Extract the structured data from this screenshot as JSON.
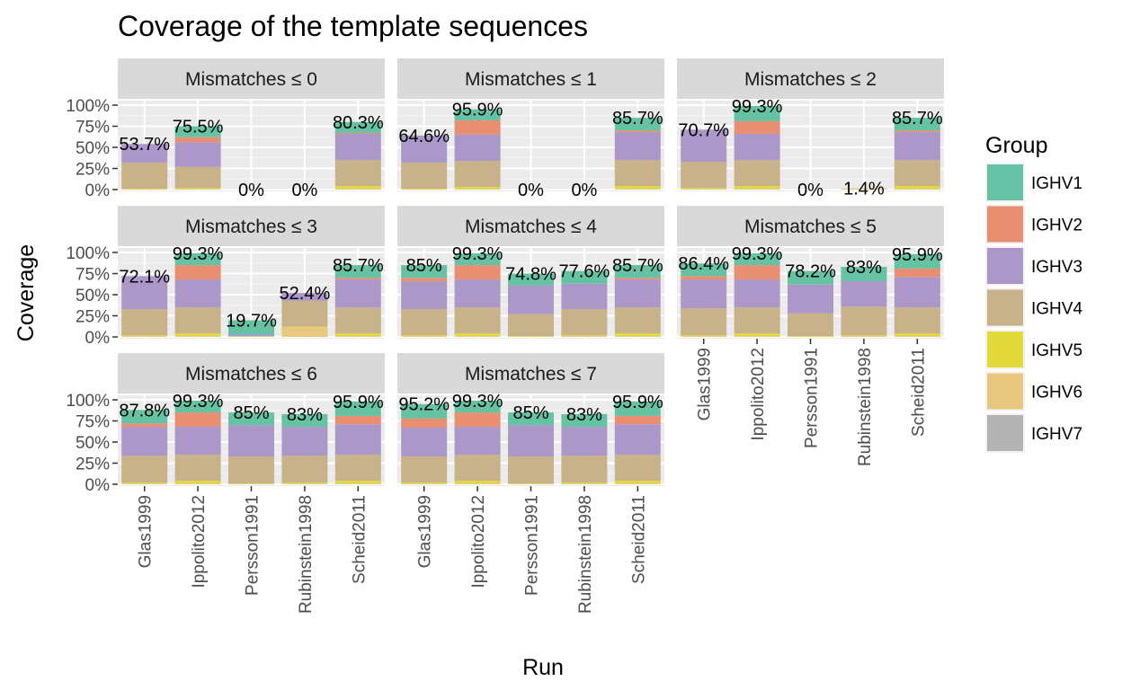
{
  "chart_data": {
    "type": "bar",
    "stacked": true,
    "title": "Coverage of the template sequences",
    "xlabel": "Run",
    "ylabel": "Coverage",
    "ylim": [
      0,
      1
    ],
    "y_ticks": [
      "0%",
      "25%",
      "50%",
      "75%",
      "100%"
    ],
    "grid": true,
    "categories": [
      "Glas1999",
      "Ippolito2012",
      "Persson1991",
      "Rubinstein1998",
      "Scheid2011"
    ],
    "legend": {
      "title": "Group",
      "position": "right",
      "items": [
        {
          "name": "IGHV1",
          "color": "#66c2a5"
        },
        {
          "name": "IGHV2",
          "color": "#e78f70"
        },
        {
          "name": "IGHV3",
          "color": "#ab98c9"
        },
        {
          "name": "IGHV4",
          "color": "#c7b28a"
        },
        {
          "name": "IGHV5",
          "color": "#e2d93b"
        },
        {
          "name": "IGHV6",
          "color": "#e8c77f"
        },
        {
          "name": "IGHV7",
          "color": "#b3b3b3"
        }
      ]
    },
    "facets": [
      {
        "label": "Mismatches ≤ 0",
        "totals": [
          "53.7%",
          "75.5%",
          "0%",
          "0%",
          "80.3%"
        ],
        "stacks": [
          [
            0,
            0,
            0.22,
            0.31,
            0.005,
            0.005,
            0
          ],
          [
            0.13,
            0.06,
            0.29,
            0.25,
            0.01,
            0.01,
            0
          ],
          [
            0,
            0,
            0,
            0,
            0,
            0,
            0
          ],
          [
            0,
            0,
            0,
            0,
            0,
            0,
            0
          ],
          [
            0.13,
            0.01,
            0.31,
            0.31,
            0.03,
            0.01,
            0
          ]
        ]
      },
      {
        "label": "Mismatches ≤ 1",
        "totals": [
          "64.6%",
          "95.9%",
          "0%",
          "0%",
          "85.7%"
        ],
        "stacks": [
          [
            0,
            0,
            0.32,
            0.31,
            0.005,
            0.005,
            0
          ],
          [
            0.13,
            0.17,
            0.31,
            0.31,
            0.02,
            0.01,
            0
          ],
          [
            0,
            0,
            0,
            0,
            0,
            0,
            0
          ],
          [
            0,
            0,
            0,
            0,
            0,
            0,
            0
          ],
          [
            0.15,
            0.02,
            0.33,
            0.31,
            0.03,
            0.01,
            0
          ]
        ]
      },
      {
        "label": "Mismatches ≤ 2",
        "totals": [
          "70.7%",
          "99.3%",
          "0%",
          "1.4%",
          "85.7%"
        ],
        "stacks": [
          [
            0,
            0,
            0.38,
            0.31,
            0.01,
            0.01,
            0
          ],
          [
            0.18,
            0.15,
            0.31,
            0.31,
            0.03,
            0.01,
            0
          ],
          [
            0,
            0,
            0,
            0,
            0,
            0,
            0
          ],
          [
            0,
            0,
            0,
            0,
            0,
            0.014,
            0
          ],
          [
            0.15,
            0.02,
            0.33,
            0.31,
            0.03,
            0.01,
            0
          ]
        ]
      },
      {
        "label": "Mismatches ≤ 3",
        "totals": [
          "72.1%",
          "99.3%",
          "19.7%",
          "52.4%",
          "85.7%"
        ],
        "stacks": [
          [
            0,
            0,
            0.39,
            0.31,
            0.01,
            0.01,
            0
          ],
          [
            0.14,
            0.17,
            0.33,
            0.31,
            0.03,
            0.01,
            0
          ],
          [
            0.17,
            0,
            0.02,
            0,
            0.005,
            0.002,
            0
          ],
          [
            0,
            0,
            0.09,
            0.31,
            0.01,
            0.11,
            0
          ],
          [
            0.15,
            0.02,
            0.33,
            0.31,
            0.03,
            0.01,
            0
          ]
        ]
      },
      {
        "label": "Mismatches ≤ 4",
        "totals": [
          "85%",
          "99.3%",
          "74.8%",
          "77.6%",
          "85.7%"
        ],
        "stacks": [
          [
            0.15,
            0.04,
            0.33,
            0.31,
            0.01,
            0.01,
            0
          ],
          [
            0.14,
            0.17,
            0.33,
            0.31,
            0.03,
            0.01,
            0
          ],
          [
            0.14,
            0,
            0.34,
            0.26,
            0.005,
            0.005,
            0
          ],
          [
            0.15,
            0,
            0.3,
            0.31,
            0.01,
            0.01,
            0
          ],
          [
            0.15,
            0.02,
            0.33,
            0.31,
            0.03,
            0.01,
            0
          ]
        ]
      },
      {
        "label": "Mismatches ≤ 5",
        "totals": [
          "86.4%",
          "99.3%",
          "78.2%",
          "83%",
          "95.9%"
        ],
        "stacks": [
          [
            0.15,
            0.04,
            0.34,
            0.32,
            0.01,
            0.01,
            0
          ],
          [
            0.14,
            0.17,
            0.33,
            0.31,
            0.03,
            0.01,
            0
          ],
          [
            0.16,
            0,
            0.34,
            0.27,
            0.005,
            0.005,
            0
          ],
          [
            0.17,
            0,
            0.3,
            0.34,
            0.01,
            0.01,
            0
          ],
          [
            0.17,
            0.1,
            0.36,
            0.31,
            0.03,
            0.01,
            0
          ]
        ]
      },
      {
        "label": "Mismatches ≤ 6",
        "totals": [
          "87.8%",
          "99.3%",
          "85%",
          "83%",
          "95.9%"
        ],
        "stacks": [
          [
            0.16,
            0.04,
            0.34,
            0.32,
            0.01,
            0.01,
            0
          ],
          [
            0.14,
            0.17,
            0.33,
            0.31,
            0.03,
            0.01,
            0
          ],
          [
            0.15,
            0,
            0.37,
            0.32,
            0.005,
            0.005,
            0
          ],
          [
            0.15,
            0,
            0.34,
            0.32,
            0.01,
            0.01,
            0
          ],
          [
            0.17,
            0.1,
            0.36,
            0.31,
            0.03,
            0.01,
            0
          ]
        ]
      },
      {
        "label": "Mismatches ≤ 7",
        "totals": [
          "95.2%",
          "99.3%",
          "85%",
          "83%",
          "95.9%"
        ],
        "stacks": [
          [
            0.17,
            0.11,
            0.34,
            0.31,
            0.01,
            0.01,
            0
          ],
          [
            0.14,
            0.17,
            0.33,
            0.31,
            0.03,
            0.01,
            0
          ],
          [
            0.15,
            0,
            0.37,
            0.32,
            0.005,
            0.005,
            0
          ],
          [
            0.15,
            0,
            0.34,
            0.32,
            0.01,
            0.01,
            0
          ],
          [
            0.17,
            0.1,
            0.36,
            0.31,
            0.03,
            0.01,
            0
          ]
        ]
      }
    ]
  }
}
